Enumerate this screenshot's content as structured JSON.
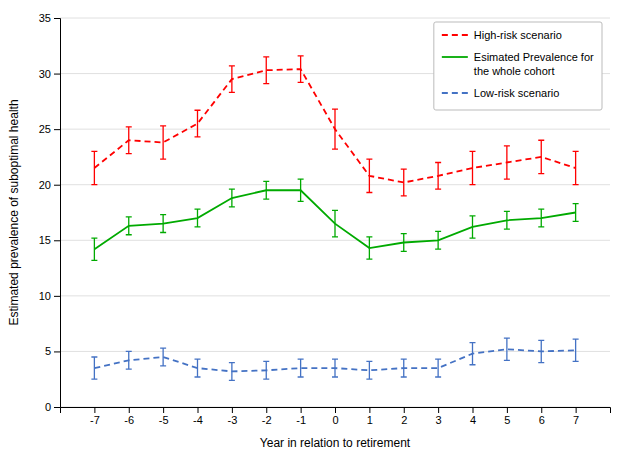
{
  "chart_data": {
    "type": "line",
    "xlabel": "Year in relation to retirement",
    "ylabel": "Estimated prevalence of suboptimal health",
    "x": [
      -7,
      -6,
      -5,
      -4,
      -3,
      -2,
      -1,
      0,
      1,
      2,
      3,
      4,
      5,
      6,
      7
    ],
    "series": [
      {
        "name": "High-risk scenario",
        "color": "#ff0000",
        "line_style": "dashed",
        "values": [
          21.5,
          24.0,
          23.8,
          25.5,
          29.5,
          30.3,
          30.4,
          25.0,
          20.8,
          20.2,
          20.8,
          21.5,
          22.0,
          22.5,
          21.5
        ],
        "errors": [
          1.5,
          1.2,
          1.5,
          1.2,
          1.2,
          1.2,
          1.2,
          1.8,
          1.5,
          1.2,
          1.2,
          1.5,
          1.5,
          1.5,
          1.5
        ]
      },
      {
        "name": "Esimated Prevalence for\nthe whole cohort",
        "color": "#00aa00",
        "line_style": "solid",
        "values": [
          14.2,
          16.3,
          16.5,
          17.0,
          18.8,
          19.5,
          19.5,
          16.5,
          14.3,
          14.8,
          15.0,
          16.2,
          16.8,
          17.0,
          17.5
        ],
        "errors": [
          1.0,
          0.8,
          0.8,
          0.8,
          0.8,
          0.8,
          1.0,
          1.2,
          1.0,
          0.8,
          0.8,
          1.0,
          0.8,
          0.8,
          0.8
        ]
      },
      {
        "name": "Low-risk scenario",
        "color": "#4472c4",
        "line_style": "dashed",
        "values": [
          3.5,
          4.2,
          4.5,
          3.5,
          3.2,
          3.3,
          3.5,
          3.5,
          3.3,
          3.5,
          3.5,
          4.8,
          5.2,
          5.0,
          5.1
        ],
        "errors": [
          1.0,
          0.8,
          0.8,
          0.8,
          0.8,
          0.8,
          0.8,
          0.8,
          0.8,
          0.8,
          0.8,
          1.0,
          1.0,
          1.0,
          1.0
        ]
      }
    ],
    "xlim": [
      -8,
      8
    ],
    "xticks": [
      -7,
      -6,
      -5,
      -4,
      -3,
      -2,
      -1,
      0,
      1,
      2,
      3,
      4,
      5,
      6,
      7
    ],
    "ylim": [
      0,
      35
    ],
    "yticks": [
      0,
      5,
      10,
      15,
      20,
      25,
      30,
      35
    ],
    "grid": true,
    "legend": "upper-right"
  }
}
